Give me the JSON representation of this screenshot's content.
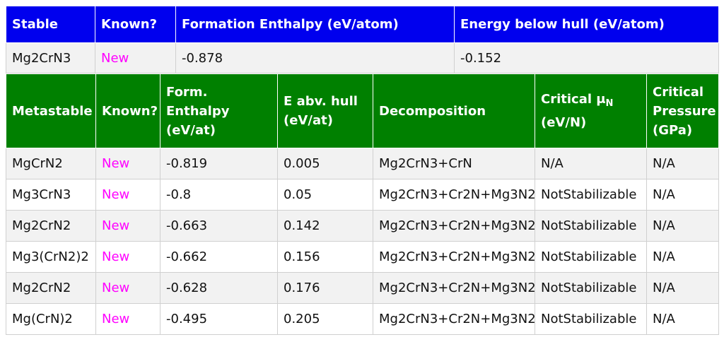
{
  "stable": {
    "headers": [
      "Stable",
      "Known?",
      "Formation Enthalpy (eV/atom)",
      "Energy below hull (eV/atom)"
    ],
    "row": {
      "compound": "Mg2CrN3",
      "known": "New",
      "formation_enthalpy": "-0.878",
      "energy_below_hull": "-0.152"
    }
  },
  "metastable": {
    "headers": {
      "compound": "Metastable",
      "known": "Known?",
      "form_enthalpy": "Form. Enthalpy (eV/at)",
      "e_abv_hull": "E abv. hull (eV/at)",
      "decomposition": "Decomposition",
      "critical_mu_prefix": "Critical μ",
      "critical_mu_sub": "N",
      "critical_mu_unit": "(eV/N)",
      "critical_pressure": "Critical Pressure (GPa)"
    },
    "rows": [
      {
        "compound": "MgCrN2",
        "known": "New",
        "form_enthalpy": "-0.819",
        "e_abv_hull": "0.005",
        "decomposition": "Mg2CrN3+CrN",
        "critical_mu": "N/A",
        "critical_pressure": "N/A"
      },
      {
        "compound": "Mg3CrN3",
        "known": "New",
        "form_enthalpy": "-0.8",
        "e_abv_hull": "0.05",
        "decomposition": "Mg2CrN3+Cr2N+Mg3N2",
        "critical_mu": "NotStabilizable",
        "critical_pressure": "N/A"
      },
      {
        "compound": "Mg2CrN2",
        "known": "New",
        "form_enthalpy": "-0.663",
        "e_abv_hull": "0.142",
        "decomposition": "Mg2CrN3+Cr2N+Mg3N2",
        "critical_mu": "NotStabilizable",
        "critical_pressure": "N/A"
      },
      {
        "compound": "Mg3(CrN2)2",
        "known": "New",
        "form_enthalpy": "-0.662",
        "e_abv_hull": "0.156",
        "decomposition": "Mg2CrN3+Cr2N+Mg3N2",
        "critical_mu": "NotStabilizable",
        "critical_pressure": "N/A"
      },
      {
        "compound": "Mg2CrN2",
        "known": "New",
        "form_enthalpy": "-0.628",
        "e_abv_hull": "0.176",
        "decomposition": "Mg2CrN3+Cr2N+Mg3N2",
        "critical_mu": "NotStabilizable",
        "critical_pressure": "N/A"
      },
      {
        "compound": "Mg(CrN)2",
        "known": "New",
        "form_enthalpy": "-0.495",
        "e_abv_hull": "0.205",
        "decomposition": "Mg2CrN3+Cr2N+Mg3N2",
        "critical_mu": "NotStabilizable",
        "critical_pressure": "N/A"
      }
    ]
  },
  "colors": {
    "stable_header": "#0000ee",
    "metastable_header": "#008000",
    "known_new": "#ff00ff"
  }
}
